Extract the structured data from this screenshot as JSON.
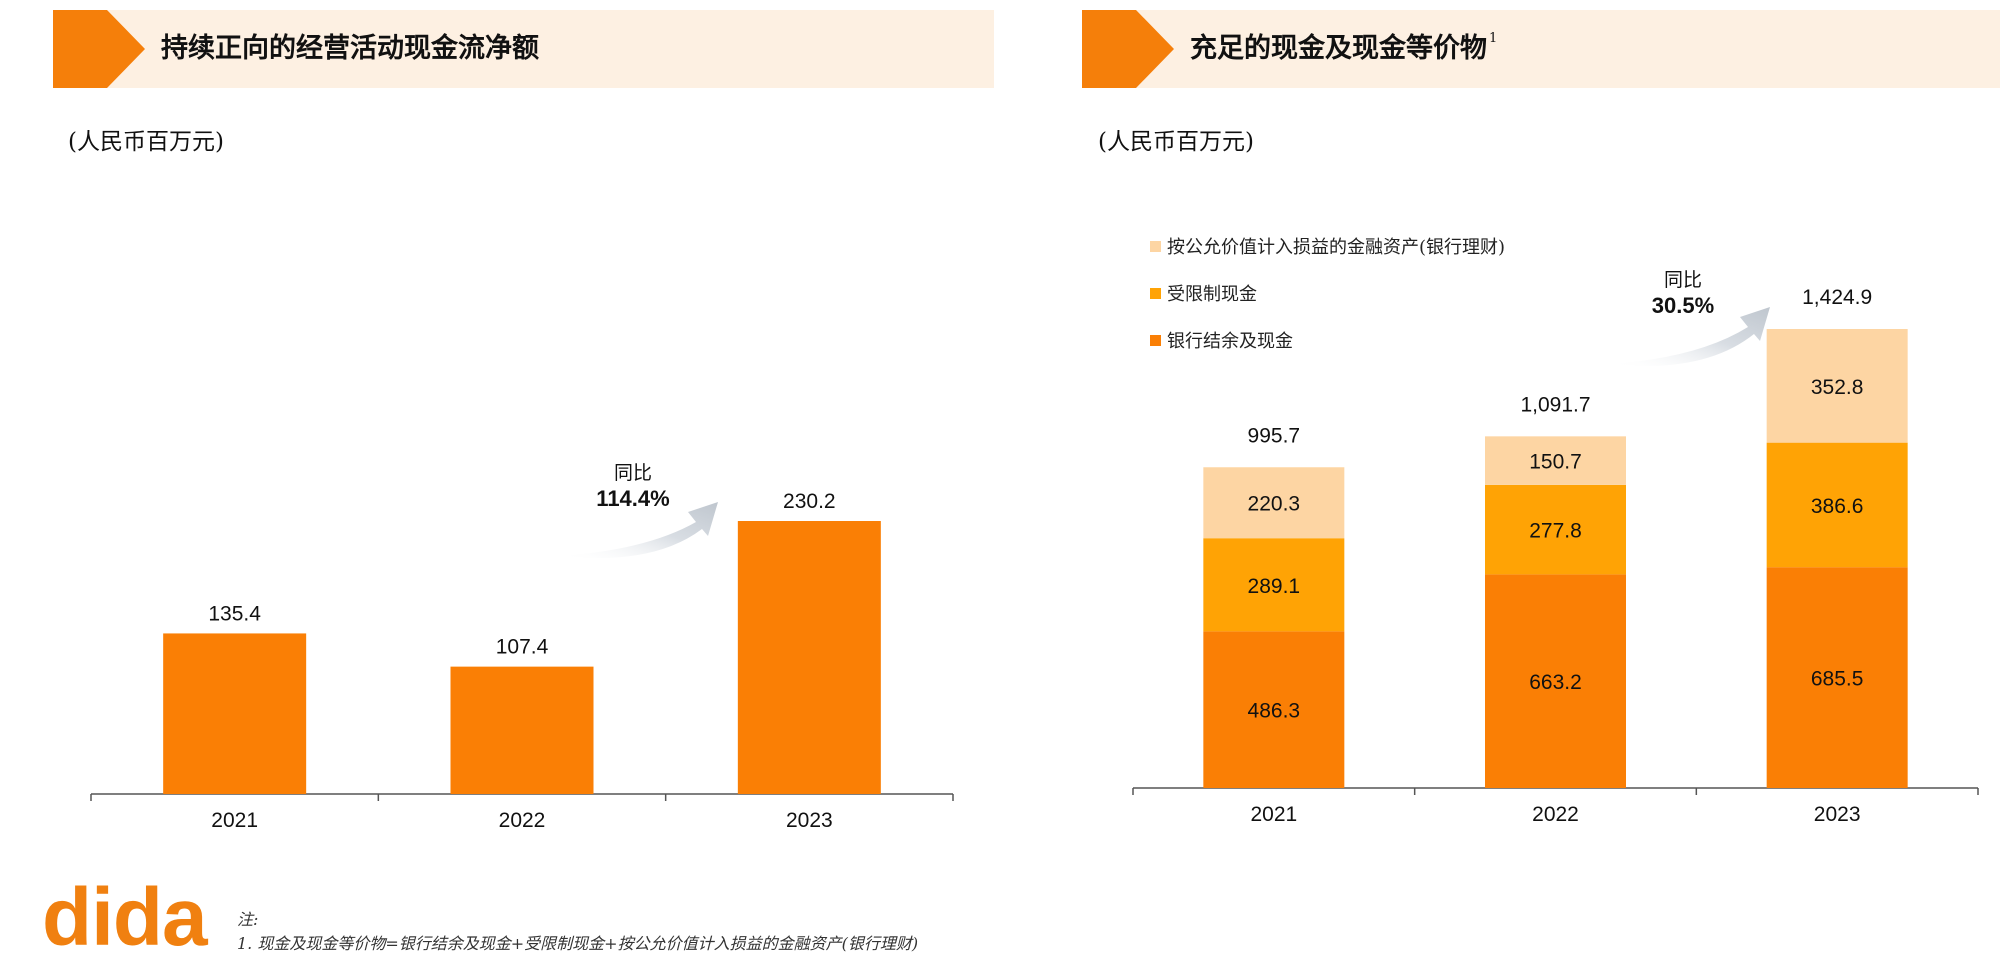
{
  "panels": {
    "left": {
      "title": "持续正向的经营活动现金流净额",
      "unit": "(人民币百万元)"
    },
    "right": {
      "title": "充足的现金及现金等价物",
      "title_sup": "1",
      "unit": "(人民币百万元)"
    }
  },
  "colors": {
    "accent": "#f57f0a",
    "banner_bg": "#fdf0e2",
    "orange": "#fa7f05",
    "amber": "#ffa305",
    "peach": "#fdd5a3"
  },
  "chart_data": [
    {
      "type": "bar",
      "categories": [
        "2021",
        "2022",
        "2023"
      ],
      "values": [
        135.4,
        107.4,
        230.2
      ],
      "value_labels": [
        "135.4",
        "107.4",
        "230.2"
      ],
      "ylim": [
        0,
        230.2
      ],
      "annotation": {
        "line1": "同比",
        "line2": "114.4%"
      }
    },
    {
      "type": "bar",
      "stacked": true,
      "categories": [
        "2021",
        "2022",
        "2023"
      ],
      "series": [
        {
          "name": "银行结余及现金",
          "color": "#fa7f05",
          "values": [
            486.3,
            663.2,
            685.5
          ],
          "labels": [
            "486.3",
            "663.2",
            "685.5"
          ]
        },
        {
          "name": "受限制现金",
          "color": "#ffa305",
          "values": [
            289.1,
            277.8,
            386.6
          ],
          "labels": [
            "289.1",
            "277.8",
            "386.6"
          ]
        },
        {
          "name": "按公允价值计入损益的金融资产(银行理财)",
          "color": "#fdd5a3",
          "values": [
            220.3,
            150.7,
            352.8
          ],
          "labels": [
            "220.3",
            "150.7",
            "352.8"
          ]
        }
      ],
      "totals": [
        "995.7",
        "1,091.7",
        "1,424.9"
      ],
      "legend_order": [
        2,
        1,
        0
      ],
      "ylim": [
        0,
        1424.9
      ],
      "annotation": {
        "line1": "同比",
        "line2": "30.5%"
      }
    }
  ],
  "footer": {
    "logo": "dida",
    "note_title": "注:",
    "note_1": "1. 现金及现金等价物=银行结余及现金+受限制现金+按公允价值计入损益的金融资产(银行理财)"
  }
}
